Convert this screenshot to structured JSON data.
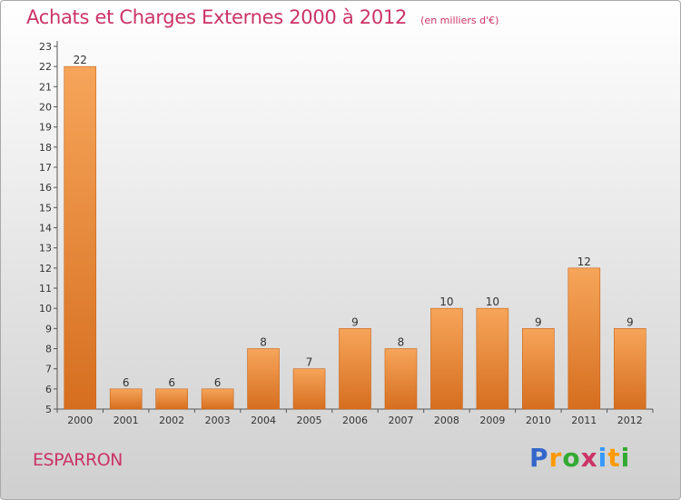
{
  "header": {
    "title": "Achats et Charges Externes 2000 à 2012",
    "subtitle": "(en milliers d'€)"
  },
  "footer": {
    "commune": "ESPARRON",
    "logo_text": "Proxiti",
    "logo_colors": [
      "#3366cc",
      "#ff9900",
      "#33aa33",
      "#cc3366",
      "#3399ff",
      "#ff9900",
      "#33aa33"
    ]
  },
  "colors": {
    "bar_light": "#f6a55a",
    "bar_dark": "#d66e1f",
    "text_accent": "#cc3366"
  },
  "chart_data": {
    "type": "bar",
    "categories": [
      "2000",
      "2001",
      "2002",
      "2003",
      "2004",
      "2005",
      "2006",
      "2007",
      "2008",
      "2009",
      "2010",
      "2011",
      "2012"
    ],
    "values": [
      22,
      6,
      6,
      6,
      8,
      7,
      9,
      8,
      10,
      10,
      9,
      12,
      9
    ],
    "y_ticks": [
      "5",
      "6",
      "7",
      "8",
      "9",
      "10",
      "11",
      "12",
      "13",
      "14",
      "15",
      "16",
      "17",
      "18",
      "19",
      "20",
      "21",
      "22",
      "23"
    ],
    "ylim": [
      5,
      23
    ],
    "grid": false,
    "legend": "none"
  }
}
